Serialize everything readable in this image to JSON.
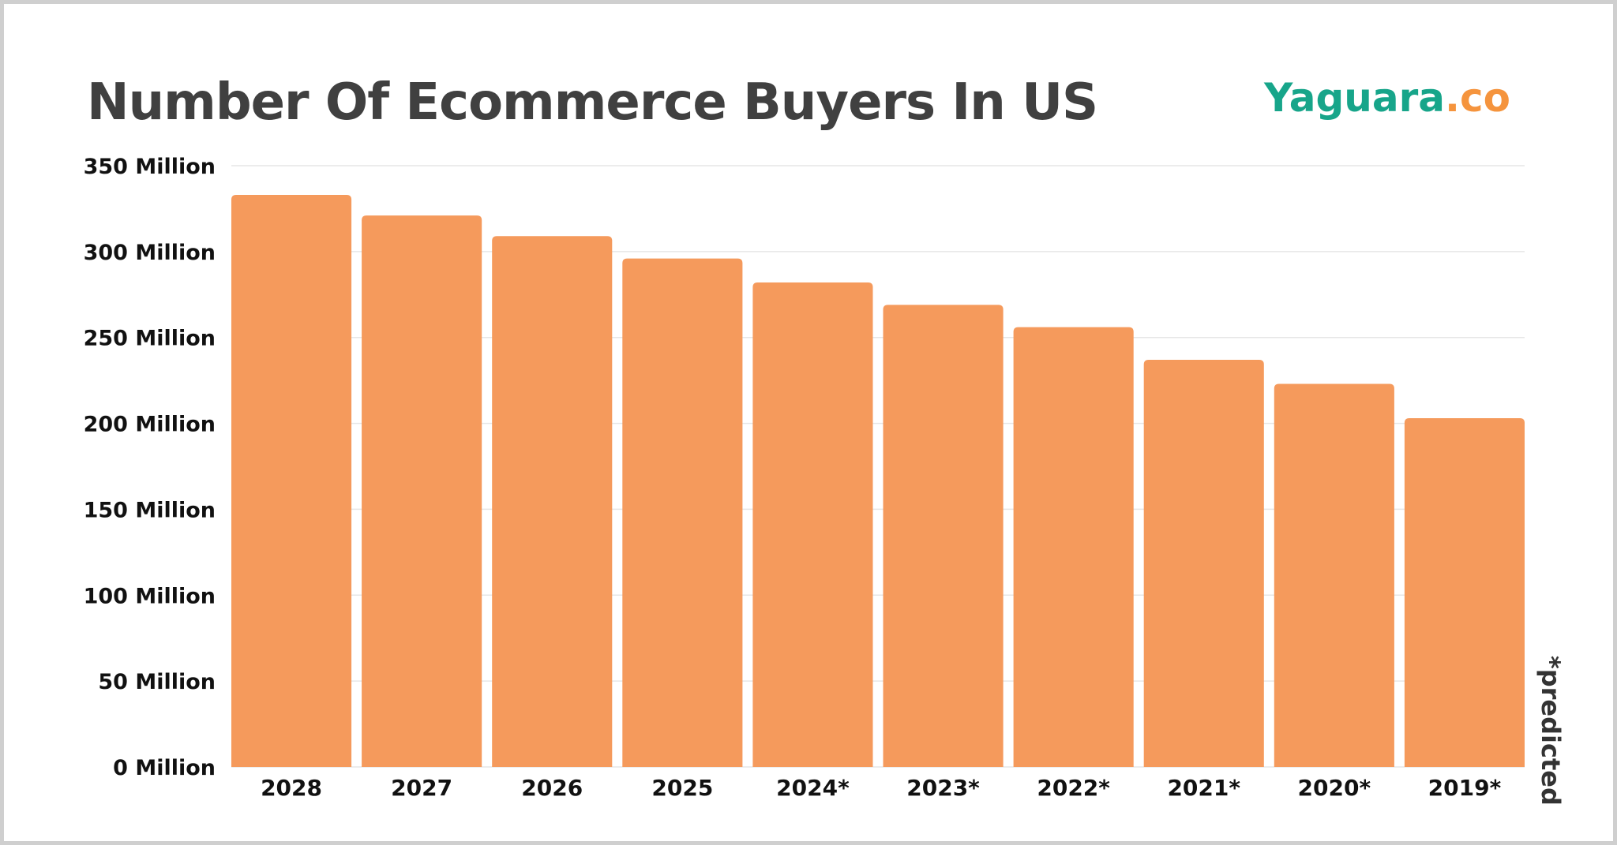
{
  "brand": {
    "name_main": "Yaguara",
    "name_suffix": ".co"
  },
  "colors": {
    "bar": "#f59a5c",
    "grid": "#e6e6e6",
    "title": "#404040",
    "brand_green": "#17a58a",
    "brand_orange": "#f5943d"
  },
  "chart_data": {
    "type": "bar",
    "title": "Number Of Ecommerce Buyers In US",
    "xlabel": "",
    "ylabel": "",
    "categories": [
      "2028",
      "2027",
      "2026",
      "2025",
      "2024*",
      "2023*",
      "2022*",
      "2021*",
      "2020*",
      "2019*"
    ],
    "values": [
      333,
      321,
      309,
      296,
      282,
      269,
      256,
      237,
      223,
      203
    ],
    "unit": "Million",
    "ylim": [
      0,
      350
    ],
    "yticks": [
      0,
      50,
      100,
      150,
      200,
      250,
      300,
      350
    ],
    "ytick_labels": [
      "0 Million",
      "50 Million",
      "100 Million",
      "150 Million",
      "200 Million",
      "250 Million",
      "300 Million",
      "350 Million"
    ],
    "grid": true,
    "annotation": "*predicted"
  }
}
